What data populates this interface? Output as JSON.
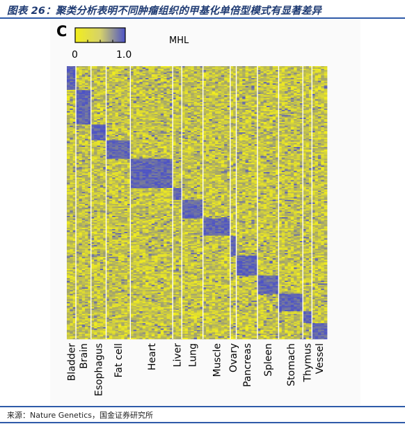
{
  "figure": {
    "title": "图表 26：聚类分析表明不同肿瘤组织的甲基化单倍型模式有显著差异",
    "source": "来源：Nature Genetics，国金证券研究所"
  },
  "colors": {
    "low": "#f2ee1c",
    "high": "#4d53c6",
    "accent": "#2e5aa8"
  },
  "chart_data": {
    "type": "heatmap",
    "panel_label": "C",
    "title": "MHL",
    "colorbar": {
      "min": 0,
      "max": 1.0,
      "tick_labels": [
        "0",
        "1.0"
      ]
    },
    "columns": [
      {
        "name": "Bladder",
        "samples": 3
      },
      {
        "name": "Brain",
        "samples": 5
      },
      {
        "name": "Esophagus",
        "samples": 5
      },
      {
        "name": "Fat cell",
        "samples": 8
      },
      {
        "name": "Heart",
        "samples": 14
      },
      {
        "name": "Liver",
        "samples": 3
      },
      {
        "name": "Lung",
        "samples": 7
      },
      {
        "name": "Muscle",
        "samples": 9
      },
      {
        "name": "Ovary",
        "samples": 2
      },
      {
        "name": "Pancreas",
        "samples": 7
      },
      {
        "name": "Spleen",
        "samples": 7
      },
      {
        "name": "Stomach",
        "samples": 8
      },
      {
        "name": "Thymus",
        "samples": 3
      },
      {
        "name": "Vessel",
        "samples": 5
      }
    ],
    "row_blocks": [
      {
        "tissue": "Bladder",
        "rows": 18
      },
      {
        "tissue": "Brain",
        "rows": 26
      },
      {
        "tissue": "Esophagus",
        "rows": 12
      },
      {
        "tissue": "Fat cell",
        "rows": 14
      },
      {
        "tissue": "Heart",
        "rows": 22
      },
      {
        "tissue": "Liver",
        "rows": 9
      },
      {
        "tissue": "Lung",
        "rows": 14
      },
      {
        "tissue": "Muscle",
        "rows": 13
      },
      {
        "tissue": "Ovary",
        "rows": 15
      },
      {
        "tissue": "Pancreas",
        "rows": 15
      },
      {
        "tissue": "Spleen",
        "rows": 14
      },
      {
        "tissue": "Stomach",
        "rows": 13
      },
      {
        "tissue": "Thymus",
        "rows": 9
      },
      {
        "tissue": "Vessel",
        "rows": 12
      }
    ],
    "background_mhl": 0.32,
    "block_mhl": 0.88
  }
}
